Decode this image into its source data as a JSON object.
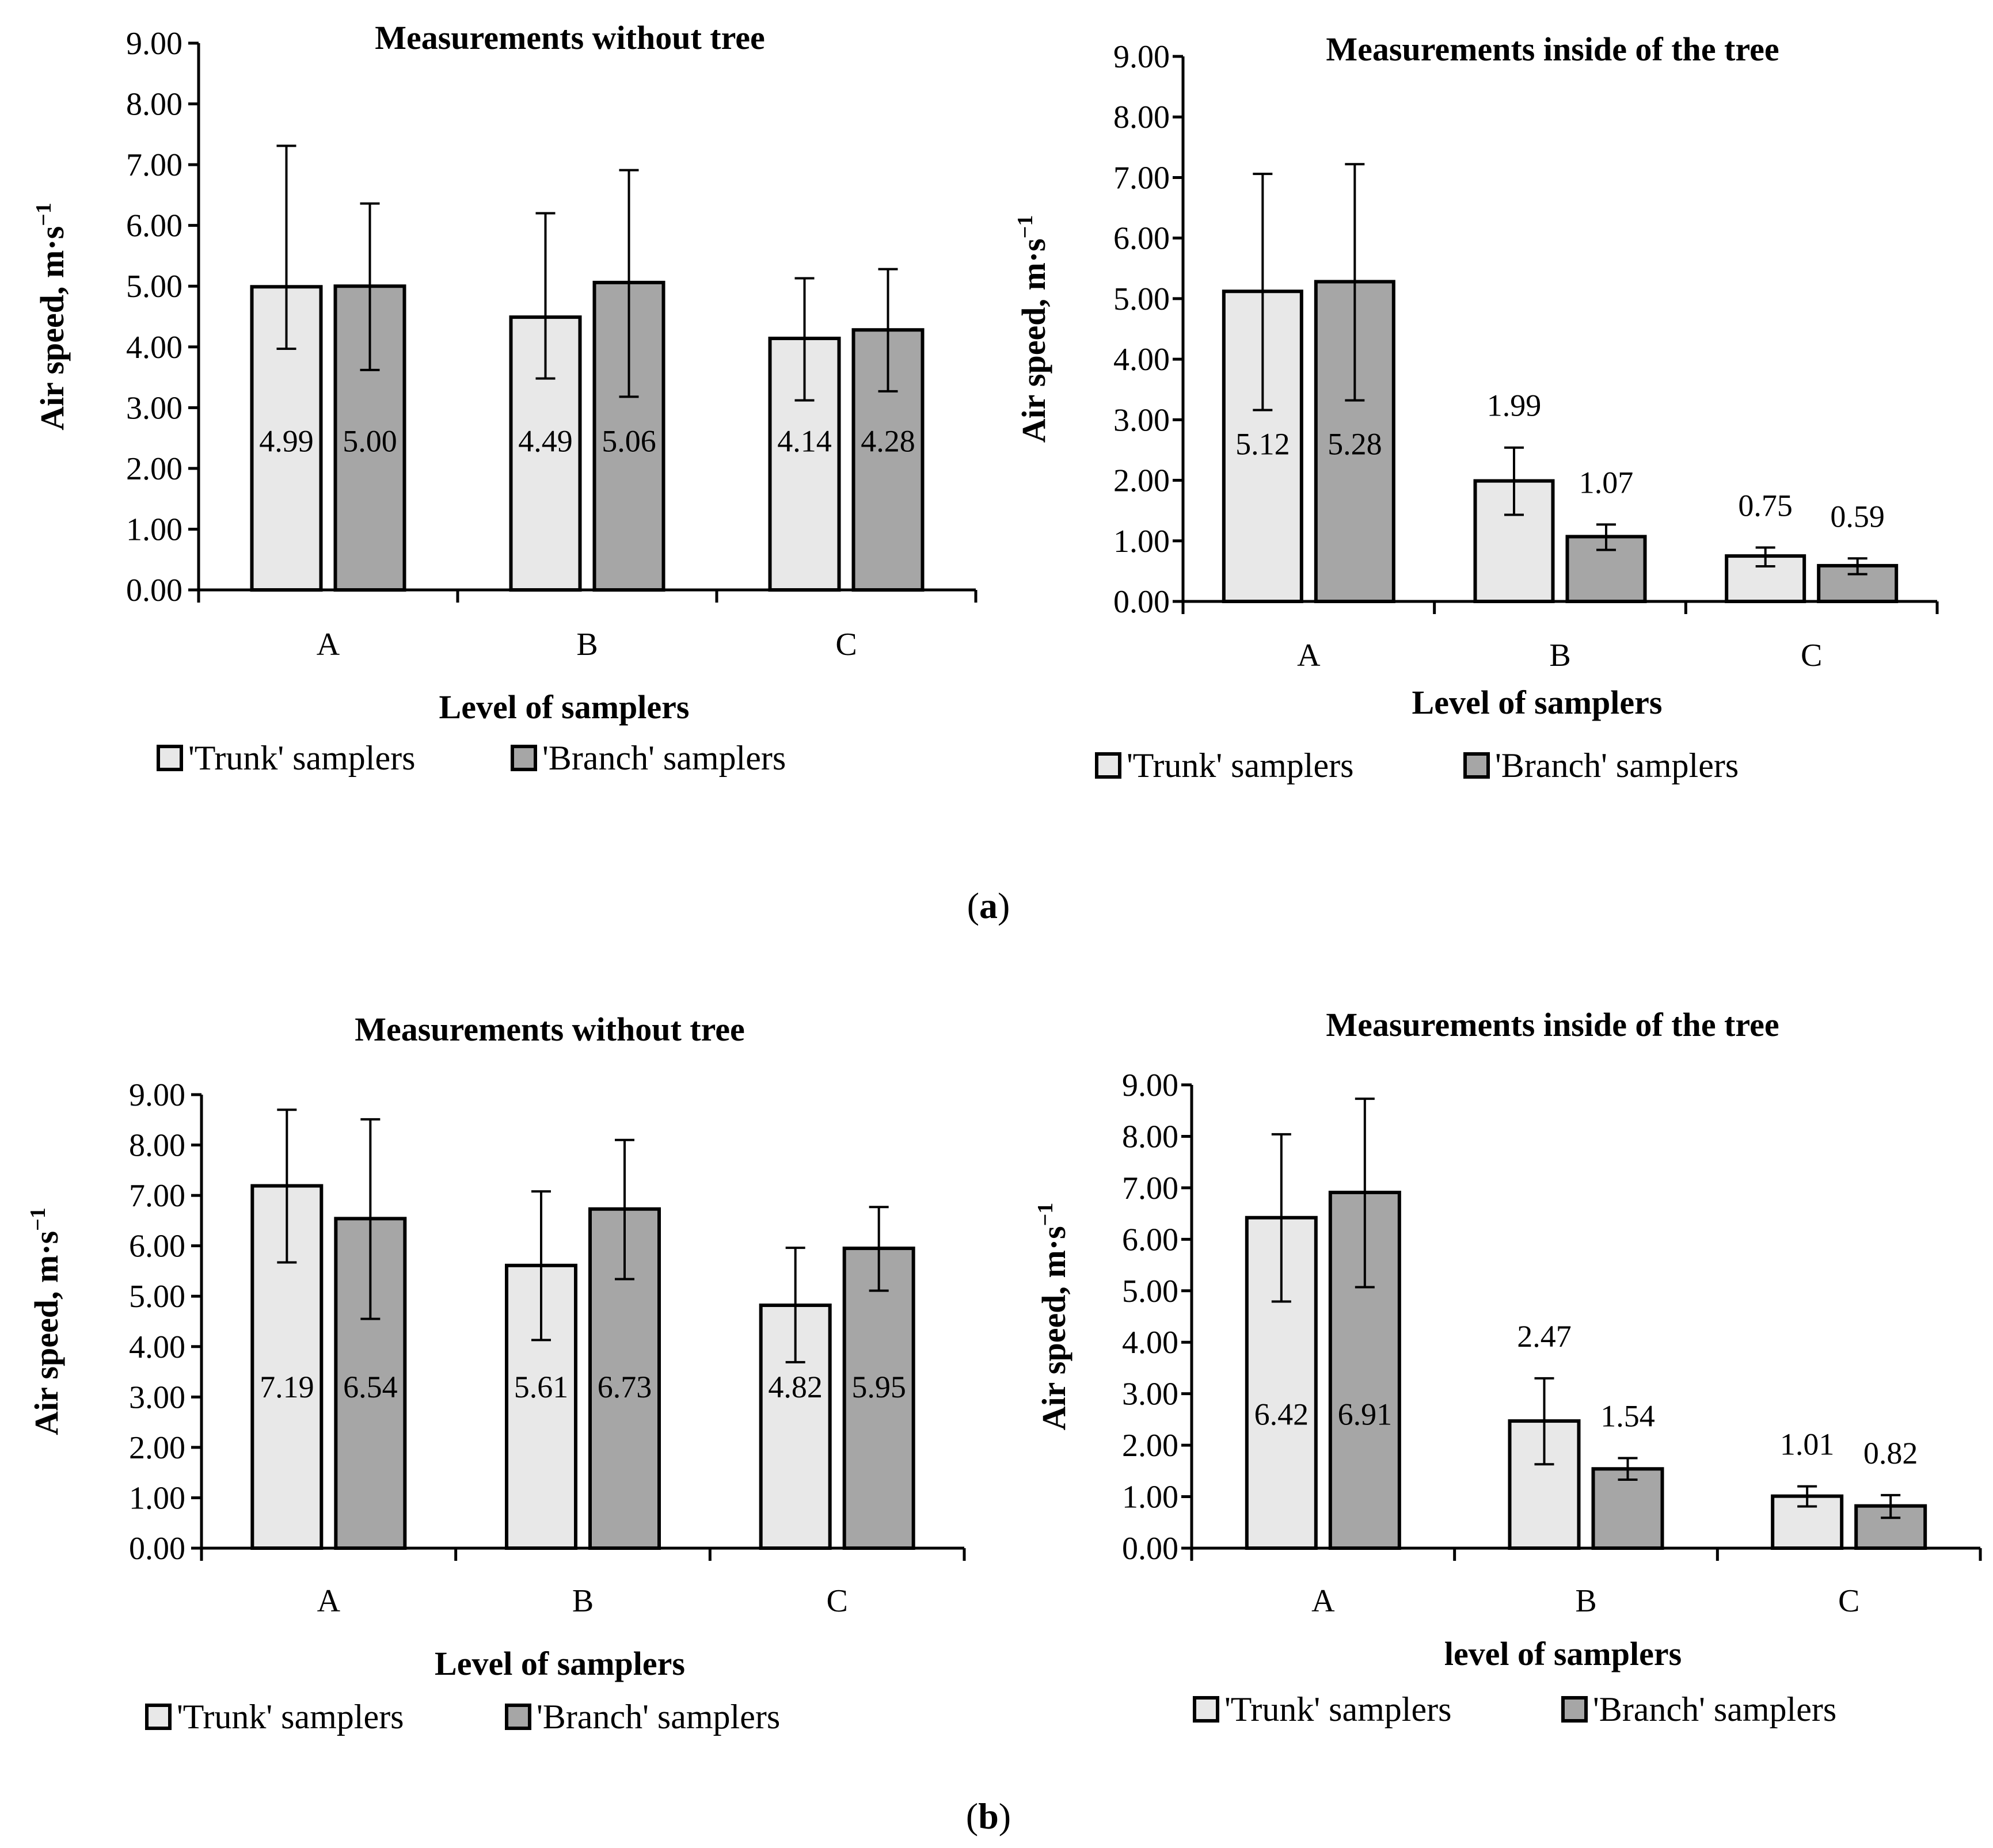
{
  "panel_labels": {
    "a_open": "(",
    "a_letter": "a",
    "a_close": ")",
    "b_open": "(",
    "b_letter": "b",
    "b_close": ")"
  },
  "colors": {
    "trunk": "#e8e8e8",
    "branch": "#a6a6a6",
    "stroke": "#000000"
  },
  "chart_data": [
    {
      "type": "bar",
      "panel": "a",
      "title": "Measurements without tree",
      "xlabel": "Level of samplers",
      "ylabel": "Air speed, m·s",
      "ylabel_sup": "−1",
      "ylim": [
        0,
        9
      ],
      "yticks": [
        "0.00",
        "1.00",
        "2.00",
        "3.00",
        "4.00",
        "5.00",
        "6.00",
        "7.00",
        "8.00",
        "9.00"
      ],
      "categories": [
        "A",
        "B",
        "C"
      ],
      "legend_position": "bottom",
      "label_inside": true,
      "series": [
        {
          "name": "'Trunk' samplers",
          "values": [
            4.99,
            4.49,
            4.14
          ],
          "labels": [
            "4.99",
            "4.49",
            "4.14"
          ],
          "err_low": [
            3.97,
            3.48,
            3.12
          ],
          "err_high": [
            7.31,
            6.2,
            5.13
          ]
        },
        {
          "name": "'Branch' samplers",
          "values": [
            5.0,
            5.06,
            4.28
          ],
          "labels": [
            "5.00",
            "5.06",
            "4.28"
          ],
          "err_low": [
            3.62,
            3.18,
            3.27
          ],
          "err_high": [
            6.36,
            6.91,
            5.28
          ]
        }
      ]
    },
    {
      "type": "bar",
      "panel": "a",
      "title": "Measurements inside of the tree",
      "xlabel": "Level of samplers",
      "ylabel": "Air speed, m·s",
      "ylabel_sup": "−1",
      "ylim": [
        0,
        9
      ],
      "yticks": [
        "0.00",
        "1.00",
        "2.00",
        "3.00",
        "4.00",
        "5.00",
        "6.00",
        "7.00",
        "8.00",
        "9.00"
      ],
      "categories": [
        "A",
        "B",
        "C"
      ],
      "legend_position": "bottom",
      "label_inside": false,
      "series": [
        {
          "name": "'Trunk' samplers",
          "values": [
            5.12,
            1.99,
            0.75
          ],
          "labels": [
            "5.12",
            "1.99",
            "0.75"
          ],
          "err_low": [
            3.16,
            1.43,
            0.58
          ],
          "err_high": [
            7.06,
            2.54,
            0.89
          ]
        },
        {
          "name": "'Branch' samplers",
          "values": [
            5.28,
            1.07,
            0.59
          ],
          "labels": [
            "5.28",
            "1.07",
            "0.59"
          ],
          "err_low": [
            3.32,
            0.85,
            0.45
          ],
          "err_high": [
            7.22,
            1.27,
            0.71
          ]
        }
      ]
    },
    {
      "type": "bar",
      "panel": "b",
      "title": "Measurements without tree",
      "xlabel": "Level of samplers",
      "ylabel": "Air speed, m·s",
      "ylabel_sup": "−1",
      "ylim": [
        0,
        9
      ],
      "yticks": [
        "0.00",
        "1.00",
        "2.00",
        "3.00",
        "4.00",
        "5.00",
        "6.00",
        "7.00",
        "8.00",
        "9.00"
      ],
      "categories": [
        "A",
        "B",
        "C"
      ],
      "legend_position": "bottom",
      "label_inside": true,
      "series": [
        {
          "name": "'Trunk' samplers",
          "values": [
            7.19,
            5.61,
            4.82
          ],
          "labels": [
            "7.19",
            "5.61",
            "4.82"
          ],
          "err_low": [
            5.67,
            4.13,
            3.69
          ],
          "err_high": [
            8.7,
            7.08,
            5.96
          ]
        },
        {
          "name": "'Branch' samplers",
          "values": [
            6.54,
            6.73,
            5.95
          ],
          "labels": [
            "6.54",
            "6.73",
            "5.95"
          ],
          "err_low": [
            4.55,
            5.34,
            5.11
          ],
          "err_high": [
            8.51,
            8.1,
            6.77
          ]
        }
      ]
    },
    {
      "type": "bar",
      "panel": "b",
      "title": "Measurements inside of the tree",
      "xlabel": "level of samplers",
      "ylabel": "Air speed, m·s",
      "ylabel_sup": "−1",
      "ylim": [
        0,
        9
      ],
      "yticks": [
        "0.00",
        "1.00",
        "2.00",
        "3.00",
        "4.00",
        "5.00",
        "6.00",
        "7.00",
        "8.00",
        "9.00"
      ],
      "categories": [
        "A",
        "B",
        "C"
      ],
      "legend_position": "bottom",
      "label_inside": false,
      "series": [
        {
          "name": "'Trunk' samplers",
          "values": [
            6.42,
            2.47,
            1.01
          ],
          "labels": [
            "6.42",
            "2.47",
            "1.01"
          ],
          "err_low": [
            4.79,
            1.63,
            0.81
          ],
          "err_high": [
            8.04,
            3.3,
            1.2
          ]
        },
        {
          "name": "'Branch' samplers",
          "values": [
            6.91,
            1.54,
            0.82
          ],
          "labels": [
            "6.91",
            "1.54",
            "0.82"
          ],
          "err_low": [
            5.07,
            1.33,
            0.59
          ],
          "err_high": [
            8.73,
            1.75,
            1.03
          ]
        }
      ]
    }
  ]
}
